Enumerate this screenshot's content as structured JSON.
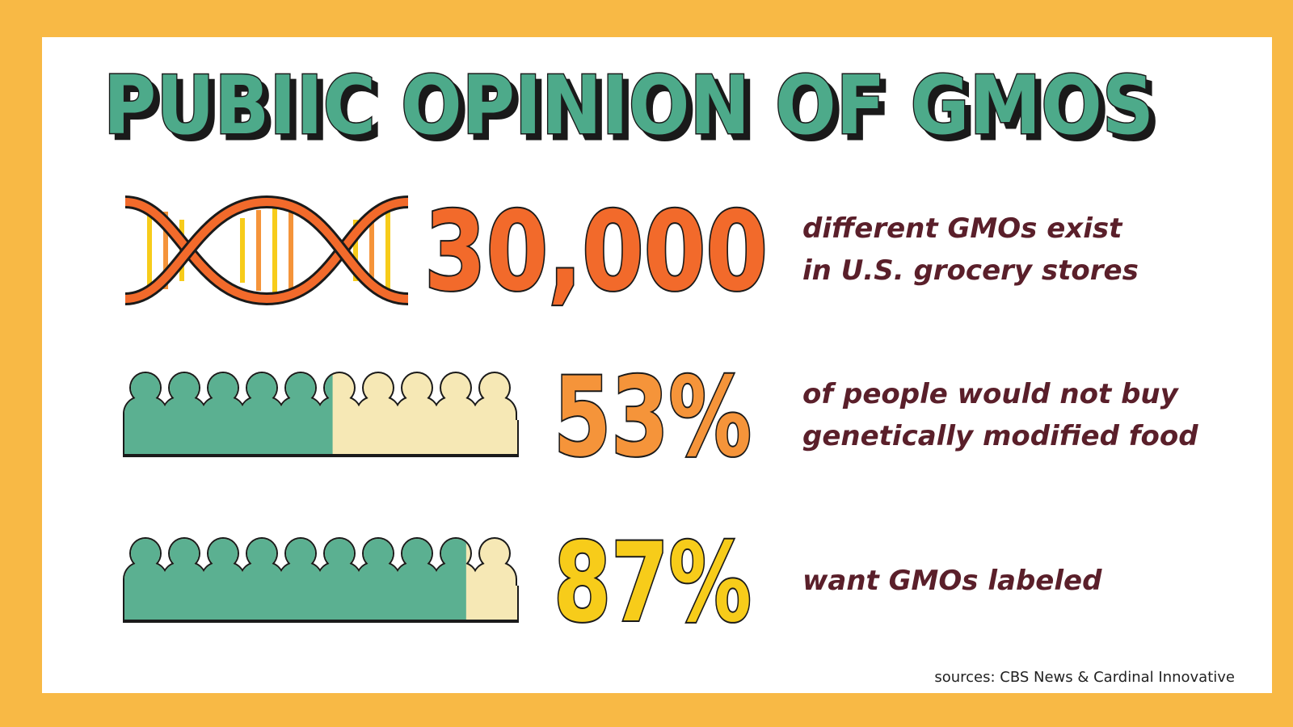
{
  "title": "PUBIIC OPINION OF GMOS",
  "stats": [
    {
      "label": "30,000",
      "color": "#f26a2b",
      "text": [
        "different GMOs exist",
        "in U.S. grocery stores"
      ]
    },
    {
      "value": 53,
      "label": "53%",
      "color": "#f5943a",
      "text": [
        "of people would not buy",
        "genetically modified food"
      ]
    },
    {
      "value": 87,
      "label": "87%",
      "color": "#f7cc1a",
      "text": [
        "want GMOs labeled"
      ]
    }
  ],
  "source": "sources: CBS News & Cardinal Innovative"
}
